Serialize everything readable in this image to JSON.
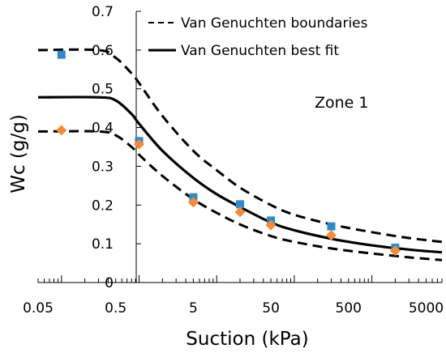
{
  "chart_data": {
    "type": "scatter",
    "title": "",
    "xlabel": "Suction (kPa)",
    "ylabel": "Wc (g/g)",
    "xscale": "log",
    "xlim": [
      0.05,
      8000
    ],
    "ylim": [
      0,
      0.7
    ],
    "xtick_labels": [
      "0.05",
      "0.5",
      "5",
      "50",
      "500",
      "5000"
    ],
    "xtick_values": [
      0.05,
      0.5,
      5,
      50,
      500,
      5000
    ],
    "ytick_labels": [
      "0",
      "0.1",
      "0.2",
      "0.3",
      "0.4",
      "0.5",
      "0.6",
      "0.7"
    ],
    "ytick_values": [
      0,
      0.1,
      0.2,
      0.3,
      0.4,
      0.5,
      0.6,
      0.7
    ],
    "grid": false,
    "legend_position": "top-right",
    "annotation": "Zone 1",
    "colors": {
      "upper_points": "#2E8BC9",
      "lower_points": "#F58A3A",
      "lines": "#000000"
    },
    "series": [
      {
        "kind": "scatter",
        "marker": "square",
        "color": "#2E8BC9",
        "x": [
          0.1,
          1,
          5,
          20,
          50,
          300,
          2000
        ],
        "y": [
          0.588,
          0.365,
          0.22,
          0.202,
          0.16,
          0.145,
          0.09
        ]
      },
      {
        "kind": "scatter",
        "marker": "diamond",
        "color": "#F58A3A",
        "x": [
          0.1,
          1,
          5,
          20,
          50,
          300,
          2000
        ],
        "y": [
          0.393,
          0.357,
          0.207,
          0.182,
          0.148,
          0.122,
          0.082
        ]
      },
      {
        "kind": "line",
        "style": "dashed",
        "name": "Van Genuchten boundaries",
        "x": [
          0.05,
          0.3,
          0.5,
          0.8,
          1,
          2,
          5,
          10,
          20,
          50,
          100,
          300,
          1000,
          3000,
          8000
        ],
        "y": [
          0.6,
          0.6,
          0.58,
          0.54,
          0.515,
          0.43,
          0.34,
          0.29,
          0.245,
          0.2,
          0.175,
          0.15,
          0.13,
          0.115,
          0.105
        ]
      },
      {
        "kind": "line",
        "style": "dashed",
        "x": [
          0.05,
          0.3,
          0.5,
          0.8,
          1,
          2,
          5,
          10,
          20,
          50,
          100,
          300,
          1000,
          3000,
          8000
        ],
        "y": [
          0.39,
          0.39,
          0.38,
          0.35,
          0.33,
          0.275,
          0.215,
          0.18,
          0.15,
          0.12,
          0.105,
          0.088,
          0.075,
          0.065,
          0.058
        ]
      },
      {
        "kind": "line",
        "style": "solid",
        "name": "Van Genuchten best fit",
        "x": [
          0.05,
          0.3,
          0.5,
          0.8,
          1,
          2,
          5,
          10,
          20,
          50,
          100,
          300,
          1000,
          3000,
          8000
        ],
        "y": [
          0.478,
          0.478,
          0.47,
          0.435,
          0.41,
          0.34,
          0.27,
          0.228,
          0.195,
          0.155,
          0.135,
          0.113,
          0.096,
          0.085,
          0.078
        ]
      }
    ]
  }
}
